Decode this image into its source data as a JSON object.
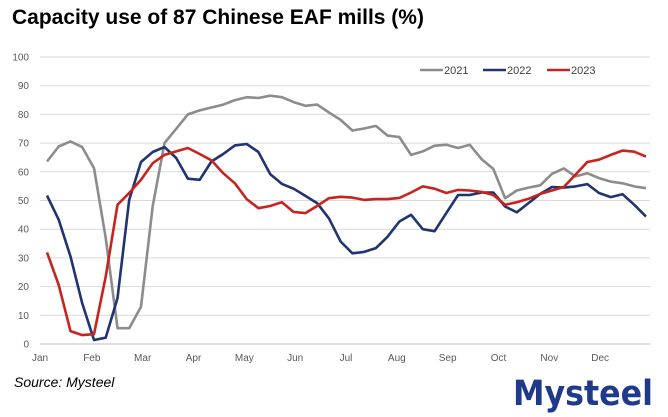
{
  "title": "Capacity use of 87 Chinese EAF mills (%)",
  "source": "Source: Mysteel",
  "logo_text": "Mysteel",
  "chart_data": {
    "type": "line",
    "title": "Capacity use of 87 Chinese EAF mills (%)",
    "xlabel": "",
    "ylabel": "",
    "ylim": [
      0,
      100
    ],
    "yticks": [
      0,
      10,
      20,
      30,
      40,
      50,
      60,
      70,
      80,
      90,
      100
    ],
    "xticks": [
      "Jan",
      "Feb",
      "Mar",
      "Apr",
      "May",
      "Jun",
      "Jul",
      "Aug",
      "Sep",
      "Oct",
      "Nov",
      "Dec"
    ],
    "grid": "horizontal",
    "legend_placement": "top-right",
    "series": [
      {
        "name": "2021",
        "color": "#8c8c8c",
        "values": [
          63.6,
          68.8,
          70.6,
          68.6,
          61.3,
          37,
          5.5,
          5.5,
          13,
          48,
          70,
          75,
          80,
          81.4,
          82.4,
          83.4,
          85,
          86,
          85.7,
          86.5,
          86,
          84.3,
          83,
          83.4,
          80.7,
          78.1,
          74.4,
          75.1,
          76,
          72.6,
          72.1,
          65.9,
          67.1,
          69.1,
          69.4,
          68.3,
          69.4,
          64.4,
          61,
          50.8,
          53.5,
          54.5,
          55.3,
          59.3,
          61.2,
          58.4,
          59.5,
          57.8,
          56.6,
          56,
          54.9,
          54.3
        ]
      },
      {
        "name": "2022",
        "color": "#1f3470",
        "values": [
          51.7,
          43.3,
          30.5,
          14.2,
          1.4,
          2.2,
          16,
          50.2,
          63.4,
          66.9,
          68.6,
          64.8,
          57.6,
          57.2,
          63.6,
          66.2,
          69.2,
          69.7,
          66.9,
          59.2,
          55.8,
          54.1,
          51.6,
          49.1,
          43.8,
          35.7,
          31.6,
          32.1,
          33.4,
          37.4,
          42.7,
          45,
          40,
          39.3,
          45.6,
          51.9,
          51.9,
          52.8,
          52.8,
          47.9,
          45.9,
          49.1,
          52.3,
          54.7,
          54.5,
          54.9,
          55.7,
          52.6,
          51.2,
          52.2,
          48.5,
          44.4
        ]
      },
      {
        "name": "2023",
        "color": "#c8231e",
        "values": [
          31.9,
          20.6,
          4.5,
          3.1,
          3.4,
          23.5,
          48.5,
          52.6,
          57.2,
          63,
          65.9,
          67.1,
          68.3,
          66.2,
          64,
          59.5,
          56,
          50.5,
          47.3,
          48.1,
          49.4,
          46,
          45.6,
          48.1,
          50.8,
          51.3,
          51,
          50.2,
          50.5,
          50.5,
          50.9,
          52.8,
          54.9,
          54.1,
          52.6,
          53.7,
          53.5,
          53,
          51.9,
          48.5,
          49.4,
          50.6,
          52.3,
          53.5,
          54.7,
          59,
          63.4,
          64.2,
          65.9,
          67.4,
          67,
          65.3
        ]
      }
    ]
  }
}
